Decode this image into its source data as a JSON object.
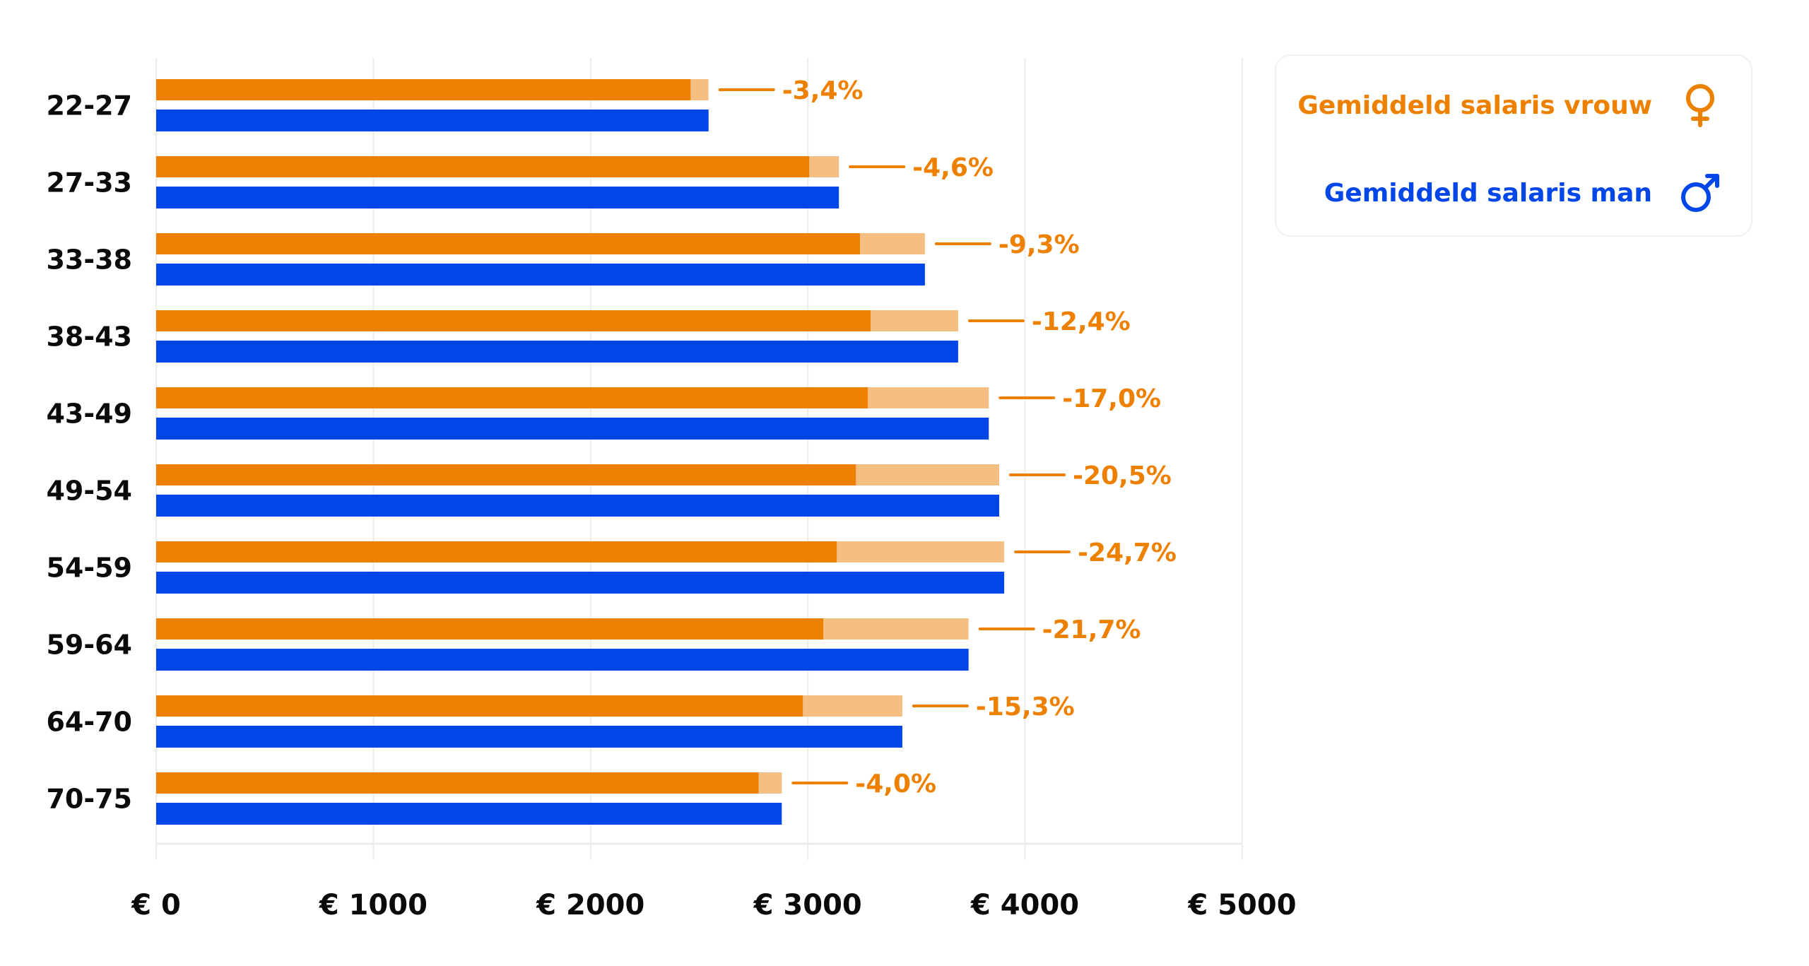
{
  "chart_data": {
    "type": "bar",
    "orientation": "horizontal",
    "title": "",
    "xlabel": "",
    "ylabel": "",
    "xlim": [
      0,
      5000
    ],
    "grid": true,
    "legend_position": "top-right",
    "categories": [
      "22-27",
      "27-33",
      "33-38",
      "38-43",
      "43-49",
      "49-54",
      "54-59",
      "59-64",
      "64-70",
      "70-75"
    ],
    "x_ticks": [
      0,
      1000,
      2000,
      3000,
      4000,
      5000
    ],
    "x_tick_labels": [
      "€ 0",
      "€ 1000",
      "€ 2000",
      "€ 3000",
      "€ 4000",
      "€ 5000"
    ],
    "series": [
      {
        "name": "Gemiddeld salaris vrouw",
        "key": "female",
        "color": "#EE8000",
        "gap_color": "#F5BE82",
        "values": [
          2460,
          3006,
          3240,
          3289,
          3276,
          3221,
          3133,
          3071,
          2977,
          2773
        ]
      },
      {
        "name": "Gemiddeld salaris man",
        "key": "male",
        "color": "#0046E8",
        "values": [
          2543,
          3143,
          3539,
          3692,
          3833,
          3881,
          3904,
          3740,
          3435,
          2880
        ]
      }
    ],
    "gap_labels": [
      "-3,4%",
      "-4,6%",
      "-9,3%",
      "-12,4%",
      "-17,0%",
      "-20,5%",
      "-24,7%",
      "-21,7%",
      "-15,3%",
      "-4,0%"
    ],
    "gap_label_color": "#EE8000"
  },
  "legend": {
    "female": {
      "label": "Gemiddeld salaris vrouw",
      "icon": "female-symbol-icon",
      "color": "#EE8000"
    },
    "male": {
      "label": "Gemiddeld salaris man",
      "icon": "male-symbol-icon",
      "color": "#0046E8"
    }
  }
}
